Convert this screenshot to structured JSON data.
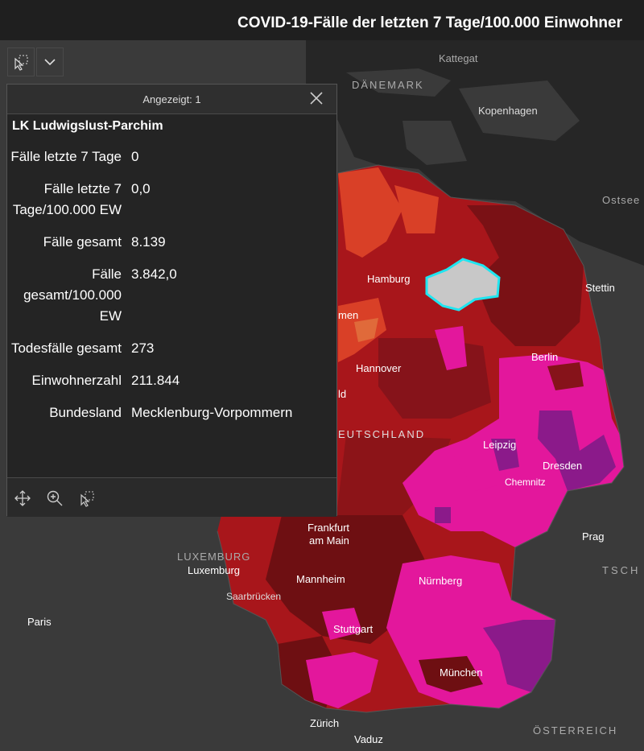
{
  "header": {
    "title": "COVID-19-Fälle der letzten 7 Tage/100.000 Einwohner"
  },
  "toolbar": {
    "select_icon": "select-tool-icon",
    "dropdown_icon": "chevron-down-icon"
  },
  "popup": {
    "count_label": "Angezeigt: 1",
    "feature_title": "LK Ludwigslust-Parchim",
    "fields": [
      {
        "label": "Fälle letzte 7 Tage",
        "value": "0"
      },
      {
        "label": "Fälle letzte 7 Tage/100.000 EW",
        "value": "0,0"
      },
      {
        "label": "Fälle gesamt",
        "value": "8.139"
      },
      {
        "label": "Fälle gesamt/100.000 EW",
        "value": "3.842,0"
      },
      {
        "label": "Todesfälle gesamt",
        "value": "273"
      },
      {
        "label": "Einwohnerzahl",
        "value": "211.844"
      },
      {
        "label": "Bundesland",
        "value": "Mecklenburg-Vorpommern"
      }
    ],
    "footer_icons": [
      "pan-icon",
      "zoom-in-icon",
      "select-tool-icon"
    ]
  },
  "map_labels": {
    "kattegat": "Kattegat",
    "daenemark": "DÄNEMARK",
    "kopenhagen": "Kopenhagen",
    "ostsee": "Ostsee",
    "stettin": "Stettin",
    "hamburg": "Hamburg",
    "bremen": "men",
    "berlin": "Berlin",
    "hannover": "Hannover",
    "ld": "ld",
    "deutschland": "EUTSCHLAND",
    "leipzig": "Leipzig",
    "dresden": "Dresden",
    "chemnitz": "Chemnitz",
    "frankfurt1": "Frankfurt",
    "frankfurt2": "am Main",
    "prag": "Prag",
    "luxemburg_country": "LUXEMBURG",
    "luxemburg_city": "Luxemburg",
    "mannheim": "Mannheim",
    "nuernberg": "Nürnberg",
    "tsch": "TSCH",
    "saarbruecken": "Saarbrücken",
    "paris": "Paris",
    "stuttgart": "Stuttgart",
    "muenchen": "München",
    "zuerich": "Zürich",
    "vaduz": "Vaduz",
    "oesterreich": "ÖSTERREICH"
  },
  "colors": {
    "land": "#3a3a3a",
    "water": "#262626",
    "orange_red": "#d94027",
    "red": "#a8161b",
    "dark_red": "#6e0f12",
    "magenta": "#e3179c",
    "purple": "#8b1a8a",
    "selected": "#c8c8c8",
    "highlight": "#1fe5f0"
  }
}
